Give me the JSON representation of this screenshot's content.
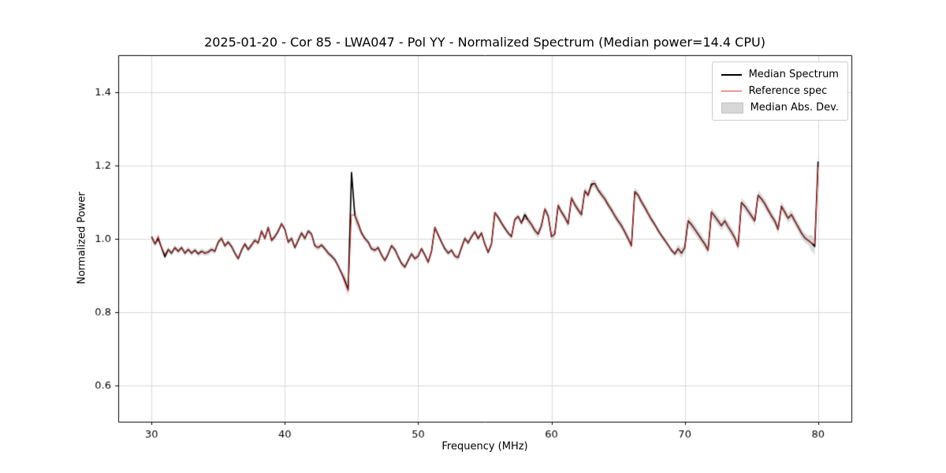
{
  "chart_data": {
    "type": "line",
    "title": "2025-01-20 - Cor 85 - LWA047 - Pol YY - Normalized Spectrum (Median power=14.4 CPU)",
    "xlabel": "Frequency (MHz)",
    "ylabel": "Normalized Power",
    "xlim": [
      27.5,
      82.5
    ],
    "ylim": [
      0.5,
      1.5
    ],
    "xticks": [
      30,
      40,
      50,
      60,
      70,
      80
    ],
    "yticks": [
      0.6,
      0.8,
      1.0,
      1.2,
      1.4
    ],
    "grid": true,
    "grid_color": "#d8d8d8",
    "legend_position": "upper right",
    "x": {
      "start": 30.0,
      "step": 0.25,
      "count": 201
    },
    "mad": {
      "default_halfwidth": 0.008,
      "ranges": [
        [
          44.4,
          45.6,
          0.018
        ],
        [
          58.0,
          67.5,
          0.011
        ],
        [
          69.5,
          79.4,
          0.013
        ],
        [
          79.4,
          80.1,
          0.022
        ]
      ]
    },
    "series": [
      {
        "name": "Median Spectrum",
        "color": "#000000",
        "linewidth": 1.7,
        "y": [
          1.005,
          0.985,
          1.0,
          0.975,
          0.95,
          0.97,
          0.96,
          0.975,
          0.965,
          0.975,
          0.96,
          0.97,
          0.96,
          0.968,
          0.958,
          0.965,
          0.96,
          0.963,
          0.97,
          0.965,
          0.99,
          1.0,
          0.98,
          0.99,
          0.978,
          0.96,
          0.945,
          0.968,
          0.985,
          0.97,
          0.982,
          0.995,
          0.988,
          1.02,
          1.0,
          1.03,
          0.995,
          1.005,
          1.02,
          1.04,
          1.025,
          0.99,
          1.0,
          0.975,
          0.995,
          1.015,
          1.0,
          1.02,
          1.012,
          0.98,
          0.975,
          0.982,
          0.972,
          0.96,
          0.952,
          0.942,
          0.925,
          0.905,
          0.885,
          0.86,
          1.18,
          1.062,
          1.04,
          1.015,
          1.0,
          0.99,
          0.972,
          0.968,
          0.975,
          0.955,
          0.94,
          0.958,
          0.98,
          0.97,
          0.95,
          0.932,
          0.922,
          0.94,
          0.958,
          0.945,
          0.952,
          0.972,
          0.955,
          0.935,
          0.965,
          1.03,
          1.01,
          0.99,
          0.972,
          0.96,
          0.968,
          0.952,
          0.948,
          0.975,
          1.0,
          0.988,
          1.005,
          1.018,
          1.0,
          1.015,
          0.985,
          0.962,
          0.985,
          1.07,
          1.058,
          1.042,
          1.028,
          1.015,
          1.005,
          1.052,
          1.06,
          1.042,
          1.065,
          1.05,
          1.038,
          1.022,
          1.012,
          1.035,
          1.08,
          1.062,
          1.005,
          1.012,
          1.09,
          1.072,
          1.058,
          1.04,
          1.11,
          1.092,
          1.078,
          1.065,
          1.13,
          1.118,
          1.148,
          1.15,
          1.132,
          1.12,
          1.108,
          1.092,
          1.078,
          1.062,
          1.048,
          1.035,
          1.018,
          1.0,
          0.98,
          1.128,
          1.118,
          1.1,
          1.085,
          1.068,
          1.052,
          1.038,
          1.022,
          1.008,
          0.995,
          0.982,
          0.968,
          0.958,
          0.972,
          0.96,
          0.975,
          1.048,
          1.038,
          1.025,
          1.012,
          0.998,
          0.985,
          0.968,
          1.072,
          1.06,
          1.048,
          1.035,
          1.048,
          1.032,
          1.018,
          1.002,
          0.978,
          1.098,
          1.088,
          1.075,
          1.062,
          1.048,
          1.118,
          1.108,
          1.095,
          1.078,
          1.062,
          1.048,
          1.025,
          1.088,
          1.072,
          1.055,
          1.065,
          1.048,
          1.032,
          1.015,
          1.002,
          0.995,
          0.988,
          0.978,
          1.21
        ]
      },
      {
        "name": "Reference spec",
        "color": "#e53935",
        "linewidth": 1.0,
        "tracks": "Median Spectrum",
        "y_overrides": {
          "30.50": 1.008,
          "31.00": 0.958,
          "44.50": 0.88,
          "44.75": 0.856,
          "45.00": 1.065,
          "58.00": 1.055,
          "63.00": 1.142,
          "79.75": 0.985,
          "80.00": 1.195
        }
      },
      {
        "name": "Median Abs. Dev.",
        "type": "band",
        "color": "#bdbdbd",
        "alpha": 0.55
      }
    ]
  }
}
